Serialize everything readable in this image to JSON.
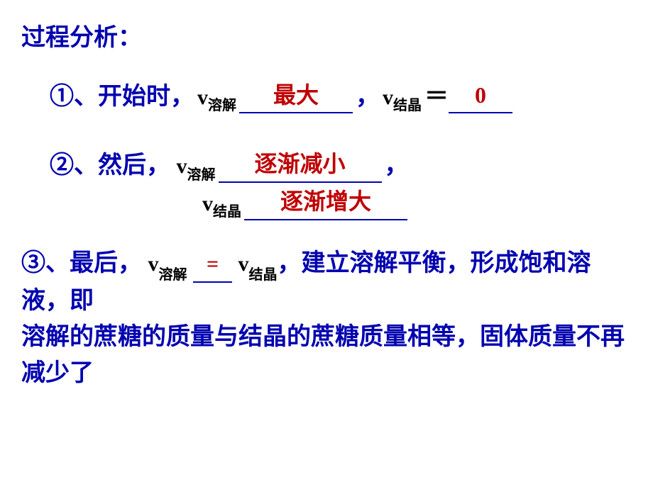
{
  "colors": {
    "main_text": "#0202b0",
    "answer_text": "#c00000",
    "var_text": "#000000",
    "underline": "#0202b0",
    "background": "#ffffff"
  },
  "typography": {
    "heading_fontsize_pt": 26,
    "body_cn_fontsize_pt": 25,
    "variable_fontsize_pt": 23,
    "subscript_fontsize_pt": 15,
    "answer_fontsize_pt": 24,
    "font_family_cn": "SimSun",
    "font_family_var": "Times New Roman",
    "weight": "bold"
  },
  "heading": "过程分析：",
  "line1": {
    "bullet": "①、开始时，",
    "var1": "v",
    "sub1": "溶解",
    "answer1": "最大",
    "comma": "，",
    "var2": "v",
    "sub2": "结晶",
    "eq": "＝",
    "answer2": "0"
  },
  "line2": {
    "bullet": "②、然后，  ",
    "var1": "v",
    "sub1": "溶解",
    "answer1": "逐渐减小",
    "comma": "，",
    "var2": "v",
    "sub2": "结晶",
    "answer2": "逐渐增大"
  },
  "line3": {
    "bullet": "③、最后，  ",
    "var1": "v",
    "sub1": "溶解",
    "answer_mid": "=",
    "var2": "v",
    "sub2": "结晶",
    "tail1": "，建立溶解平衡，形成饱和溶液，即",
    "tail2": "溶解的蔗糖的质量与结晶的蔗糖质量相等，固体质量不再减少了"
  }
}
